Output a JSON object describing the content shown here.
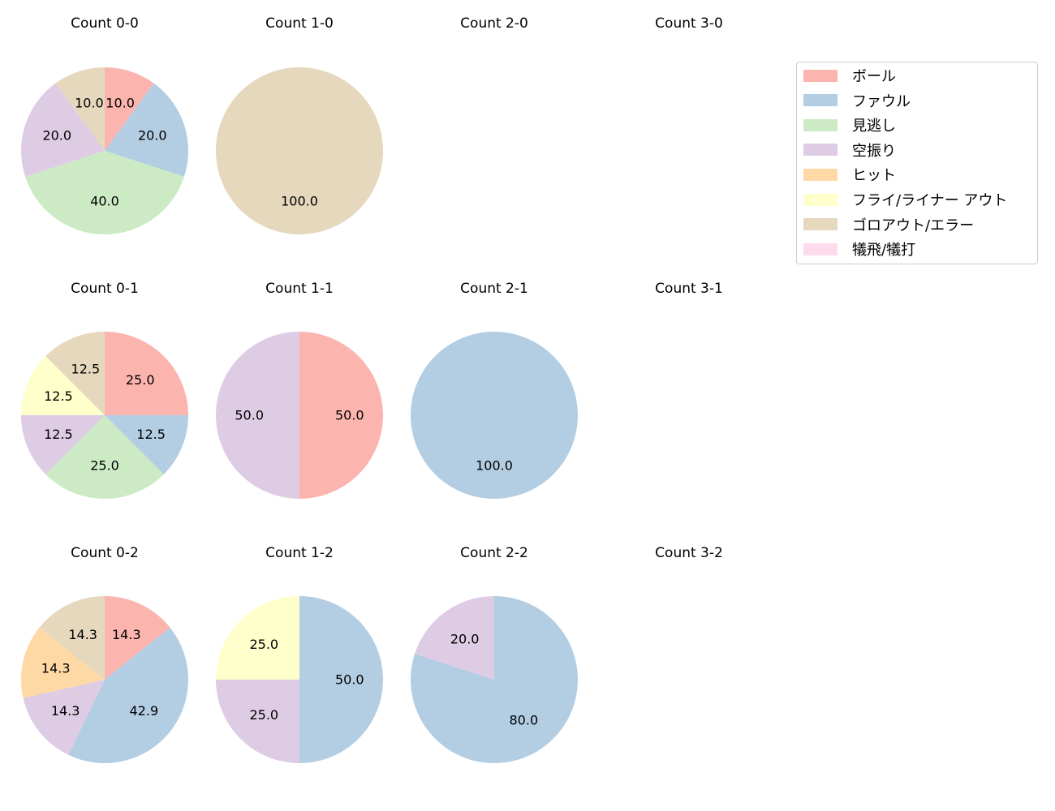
{
  "chart_data": {
    "type": "pie",
    "layout": "grid 3 rows x 4 cols of pie charts, clockwise from top, labels are percentages",
    "legend": {
      "position": "upper right",
      "entries": [
        {
          "label": "ボール",
          "color": "#fbb4ae"
        },
        {
          "label": "ファウル",
          "color": "#b3cde3"
        },
        {
          "label": "見逃し",
          "color": "#ccebc5"
        },
        {
          "label": "空振り",
          "color": "#decbe4"
        },
        {
          "label": "ヒット",
          "color": "#fed9a6"
        },
        {
          "label": "フライ/ライナー アウト",
          "color": "#ffffcc"
        },
        {
          "label": "ゴロアウト/エラー",
          "color": "#e5d8bd"
        },
        {
          "label": "犠飛/犠打",
          "color": "#fddaec"
        }
      ]
    },
    "charts": [
      {
        "title": "Count 0-0",
        "row": 0,
        "col": 0,
        "slices": [
          {
            "label": "ボール",
            "value": 10.0
          },
          {
            "label": "ファウル",
            "value": 20.0
          },
          {
            "label": "見逃し",
            "value": 40.0
          },
          {
            "label": "空振り",
            "value": 20.0
          },
          {
            "label": "ゴロアウト/エラー",
            "value": 10.0
          }
        ]
      },
      {
        "title": "Count 1-0",
        "row": 0,
        "col": 1,
        "slices": [
          {
            "label": "ゴロアウト/エラー",
            "value": 100.0
          }
        ]
      },
      {
        "title": "Count 2-0",
        "row": 0,
        "col": 2,
        "slices": []
      },
      {
        "title": "Count 3-0",
        "row": 0,
        "col": 3,
        "slices": []
      },
      {
        "title": "Count 0-1",
        "row": 1,
        "col": 0,
        "slices": [
          {
            "label": "ボール",
            "value": 25.0
          },
          {
            "label": "ファウル",
            "value": 12.5
          },
          {
            "label": "見逃し",
            "value": 25.0
          },
          {
            "label": "空振り",
            "value": 12.5
          },
          {
            "label": "フライ/ライナー アウト",
            "value": 12.5
          },
          {
            "label": "ゴロアウト/エラー",
            "value": 12.5
          }
        ]
      },
      {
        "title": "Count 1-1",
        "row": 1,
        "col": 1,
        "slices": [
          {
            "label": "ボール",
            "value": 50.0
          },
          {
            "label": "空振り",
            "value": 50.0
          }
        ]
      },
      {
        "title": "Count 2-1",
        "row": 1,
        "col": 2,
        "slices": [
          {
            "label": "ファウル",
            "value": 100.0
          }
        ]
      },
      {
        "title": "Count 3-1",
        "row": 1,
        "col": 3,
        "slices": []
      },
      {
        "title": "Count 0-2",
        "row": 2,
        "col": 0,
        "slices": [
          {
            "label": "ボール",
            "value": 14.3
          },
          {
            "label": "ファウル",
            "value": 42.9
          },
          {
            "label": "空振り",
            "value": 14.3
          },
          {
            "label": "ヒット",
            "value": 14.3
          },
          {
            "label": "ゴロアウト/エラー",
            "value": 14.3
          }
        ]
      },
      {
        "title": "Count 1-2",
        "row": 2,
        "col": 1,
        "slices": [
          {
            "label": "ファウル",
            "value": 50.0
          },
          {
            "label": "空振り",
            "value": 25.0
          },
          {
            "label": "フライ/ライナー アウト",
            "value": 25.0
          }
        ]
      },
      {
        "title": "Count 2-2",
        "row": 2,
        "col": 2,
        "slices": [
          {
            "label": "ファウル",
            "value": 80.0
          },
          {
            "label": "空振り",
            "value": 20.0
          }
        ]
      },
      {
        "title": "Count 3-2",
        "row": 2,
        "col": 3,
        "slices": []
      }
    ]
  }
}
